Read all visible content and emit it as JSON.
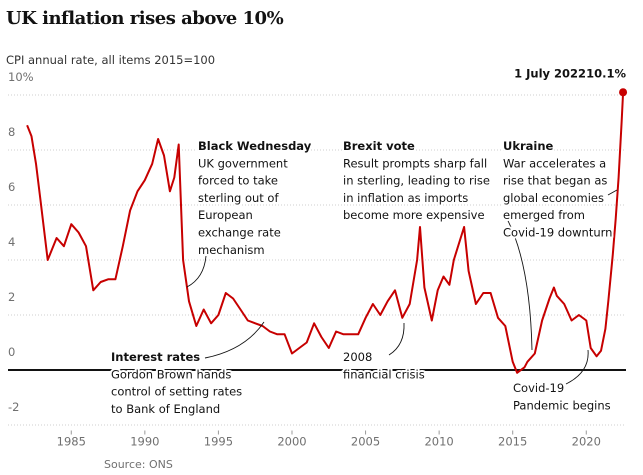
{
  "chart_data": {
    "type": "line",
    "title": "UK inflation rises above 10%",
    "subtitle": "CPI annual rate, all items 2015=100",
    "source": "Source: ONS",
    "xlim": [
      1980.7,
      2022.7
    ],
    "ylim": [
      -2.2,
      10.5
    ],
    "xticks": [
      1985,
      1990,
      1995,
      2000,
      2005,
      2010,
      2015,
      2020
    ],
    "yticks": [
      -2,
      0,
      2,
      4,
      6,
      8,
      {
        "value": 10,
        "label": "10%"
      }
    ],
    "grid": true,
    "series": [
      {
        "name": "CPI annual rate",
        "color": "#c70000",
        "x": [
          1982.0,
          1982.3,
          1982.6,
          1982.9,
          1983.4,
          1984.0,
          1984.5,
          1985.0,
          1985.5,
          1986.0,
          1986.5,
          1987.0,
          1987.5,
          1988.0,
          1988.5,
          1989.0,
          1989.5,
          1990.0,
          1990.5,
          1990.9,
          1991.3,
          1991.7,
          1992.0,
          1992.3,
          1992.6,
          1993.0,
          1993.5,
          1994.0,
          1994.5,
          1995.0,
          1995.5,
          1996.0,
          1996.5,
          1997.0,
          1997.5,
          1998.0,
          1998.5,
          1999.0,
          1999.5,
          2000.0,
          2000.5,
          2001.0,
          2001.5,
          2002.0,
          2002.5,
          2003.0,
          2003.5,
          2004.0,
          2004.5,
          2005.0,
          2005.5,
          2006.0,
          2006.5,
          2007.0,
          2007.5,
          2008.0,
          2008.5,
          2008.7,
          2009.0,
          2009.5,
          2009.9,
          2010.3,
          2010.7,
          2011.0,
          2011.7,
          2012.0,
          2012.5,
          2013.0,
          2013.5,
          2014.0,
          2014.5,
          2015.0,
          2015.3,
          2015.8,
          2016.0,
          2016.5,
          2017.0,
          2017.5,
          2017.8,
          2018.0,
          2018.5,
          2019.0,
          2019.5,
          2020.0,
          2020.3,
          2020.7,
          2021.0,
          2021.3,
          2021.5,
          2021.8,
          2022.0,
          2022.2,
          2022.4,
          2022.5
        ],
        "values": [
          8.9,
          8.5,
          7.5,
          6.2,
          4.0,
          4.8,
          4.5,
          5.3,
          5.0,
          4.5,
          2.9,
          3.2,
          3.3,
          3.3,
          4.5,
          5.8,
          6.5,
          6.9,
          7.5,
          8.4,
          7.8,
          6.5,
          7.0,
          8.2,
          4.0,
          2.5,
          1.6,
          2.2,
          1.7,
          2.0,
          2.8,
          2.6,
          2.2,
          1.8,
          1.7,
          1.6,
          1.4,
          1.3,
          1.3,
          0.6,
          0.8,
          1.0,
          1.7,
          1.2,
          0.8,
          1.4,
          1.3,
          1.3,
          1.3,
          1.9,
          2.4,
          2.0,
          2.5,
          2.9,
          1.9,
          2.4,
          4.0,
          5.2,
          3.0,
          1.8,
          2.9,
          3.4,
          3.1,
          4.0,
          5.2,
          3.6,
          2.4,
          2.8,
          2.8,
          1.9,
          1.6,
          0.3,
          -0.1,
          0.1,
          0.3,
          0.6,
          1.8,
          2.6,
          3.0,
          2.7,
          2.4,
          1.8,
          2.0,
          1.8,
          0.8,
          0.5,
          0.7,
          1.5,
          2.5,
          4.2,
          5.5,
          7.0,
          9.0,
          10.1
        ]
      }
    ],
    "end_label": {
      "date": "1 July 2022",
      "value_label": "10.1%"
    },
    "annotations": [
      {
        "title": "Black Wednesday",
        "lines": [
          "UK government",
          "forced to take",
          "sterling out of",
          "European",
          "exchange rate",
          "mechanism"
        ]
      },
      {
        "title": "Brexit vote",
        "lines": [
          "Result prompts sharp fall",
          "in sterling, leading to rise",
          "in inflation as imports",
          "become more expensive"
        ]
      },
      {
        "title": "Ukraine",
        "lines": [
          "War accelerates a",
          "rise that began as",
          "global economies",
          "emerged from",
          "Covid-19 downturn"
        ]
      },
      {
        "title": "Interest rates",
        "lines": [
          "Gordon Brown hands",
          "control of setting rates",
          "to Bank of England"
        ]
      },
      {
        "title": "2008",
        "lines": [
          "financial crisis"
        ]
      },
      {
        "title": "Covid-19",
        "lines": [
          "Pandemic begins"
        ]
      }
    ]
  }
}
